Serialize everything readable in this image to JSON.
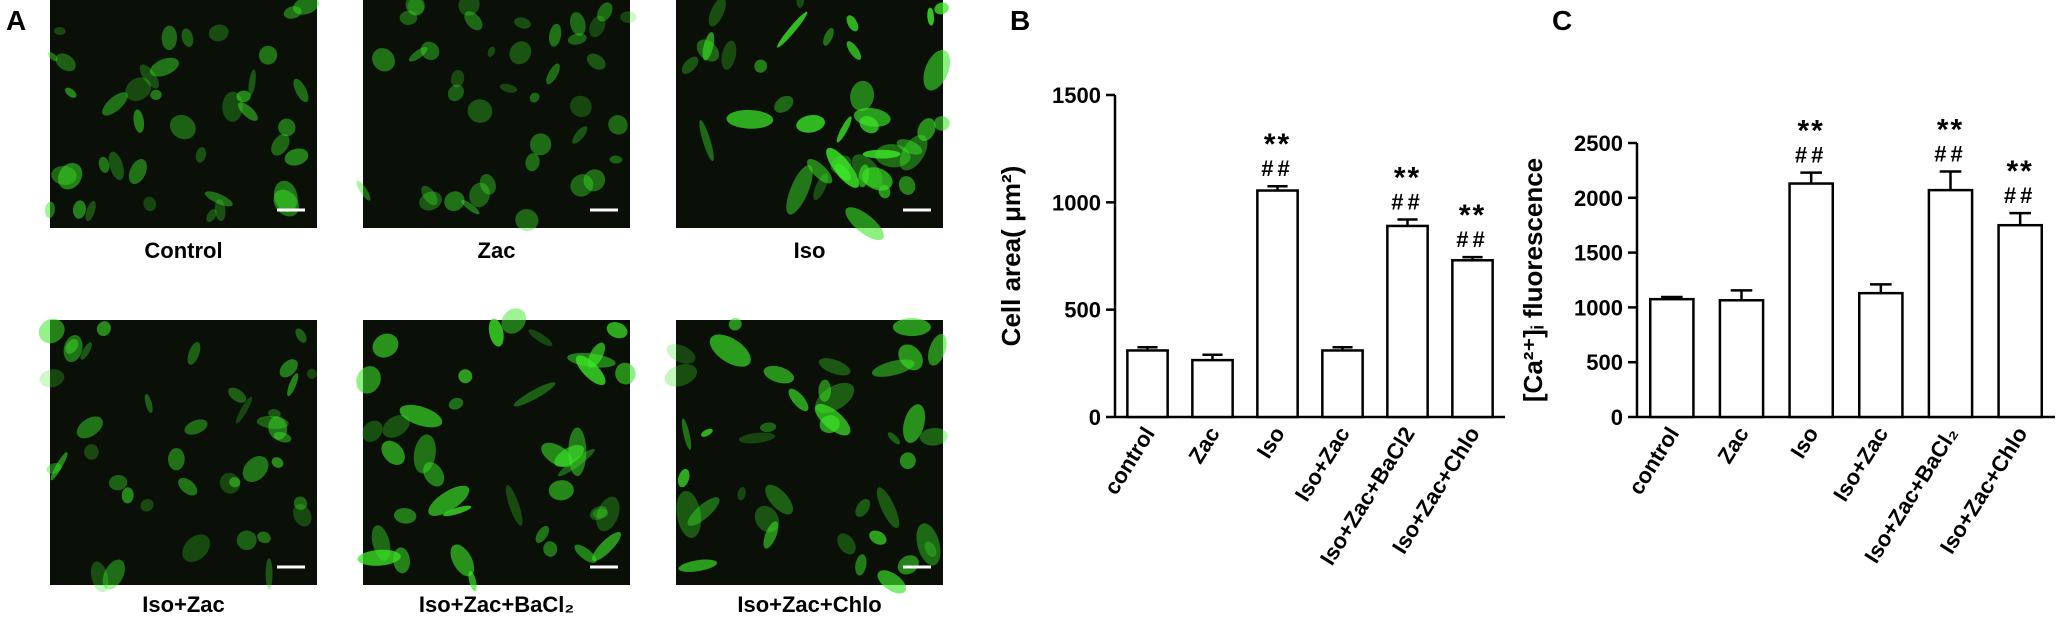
{
  "panel_a": {
    "label": "A",
    "captions": [
      "Control",
      "Zac",
      "Iso",
      "Iso+Zac",
      "Iso+Zac+BaCl₂",
      "Iso+Zac+Chlo"
    ]
  },
  "chart_data": [
    {
      "type": "bar",
      "panel": "B",
      "y_label": "Cell area( μm²)",
      "categories": [
        "control",
        "Zac",
        "Iso",
        "Iso+Zac",
        "Iso+Zac+BaCl2",
        "Iso+Zac+Chlo"
      ],
      "values": [
        310,
        265,
        1055,
        310,
        890,
        730
      ],
      "errors": [
        15,
        25,
        20,
        15,
        30,
        15
      ],
      "stars": [
        null,
        null,
        "**",
        null,
        "**",
        "**"
      ],
      "hashes": [
        null,
        null,
        "##",
        null,
        "##",
        "##"
      ],
      "color": "#ffffff",
      "ylim": [
        0,
        1500
      ],
      "yticks": [
        0,
        500,
        1000,
        1500
      ]
    },
    {
      "type": "bar",
      "panel": "C",
      "y_label": "[Ca²⁺]ᵢ fluorescence",
      "categories": [
        "control",
        "Zac",
        "Iso",
        "Iso+Zac",
        "Iso+Zac+BaCl₂",
        "Iso+Zac+Chlo"
      ],
      "values": [
        1075,
        1065,
        2130,
        1130,
        2070,
        1750
      ],
      "errors": [
        20,
        90,
        100,
        80,
        170,
        110
      ],
      "stars": [
        null,
        null,
        "**",
        null,
        "**",
        "**"
      ],
      "hashes": [
        null,
        null,
        "##",
        null,
        "##",
        "##"
      ],
      "color": "#ffffff",
      "ylim": [
        0,
        2500
      ],
      "yticks": [
        0,
        500,
        1000,
        1500,
        2000,
        2500
      ]
    }
  ]
}
